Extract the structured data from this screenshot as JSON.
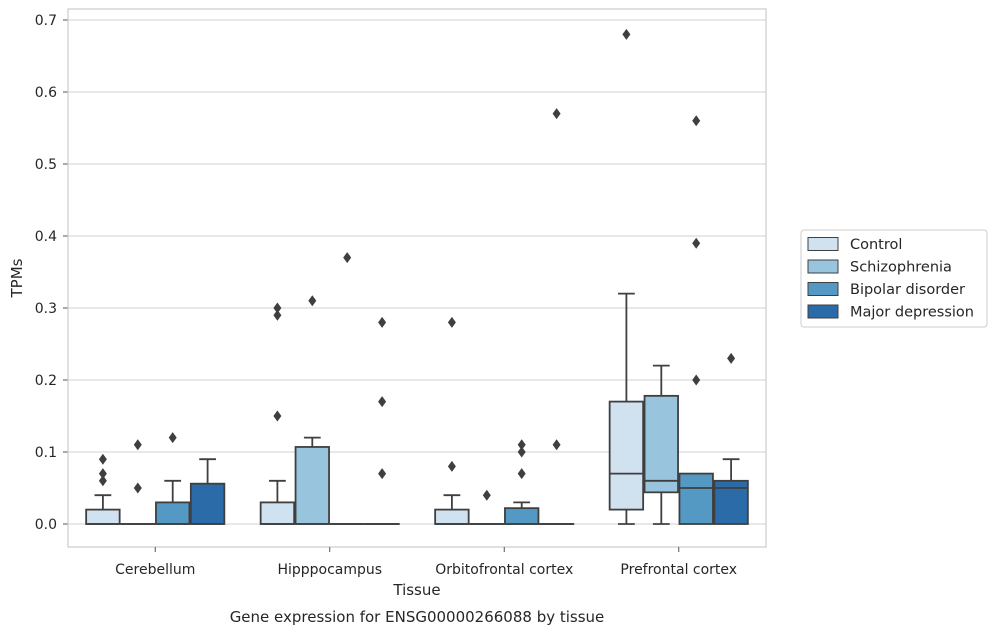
{
  "chart_data": {
    "type": "boxplot",
    "xlabel": "Tissue",
    "ylabel": "TPMs",
    "caption": "Gene expression for ENSG00000266088 by tissue",
    "ylim": [
      -0.033,
      0.715
    ],
    "yticks": [
      0.0,
      0.1,
      0.2,
      0.3,
      0.4,
      0.5,
      0.6,
      0.7
    ],
    "ytick_labels": [
      "0.0",
      "0.1",
      "0.2",
      "0.3",
      "0.4",
      "0.5",
      "0.6",
      "0.7"
    ],
    "grid": "horizontal",
    "legend_position": "right",
    "categories": [
      "Cerebellum",
      "Hipppocampus",
      "Orbitofrontal cortex",
      "Prefrontal cortex"
    ],
    "series": [
      {
        "name": "Control",
        "color": "#d0e1f0",
        "boxes": [
          {
            "whislo": 0.0,
            "q1": 0.0,
            "med": 0.0,
            "q3": 0.02,
            "whishi": 0.04,
            "fliers": [
              0.06,
              0.07,
              0.09
            ]
          },
          {
            "whislo": 0.0,
            "q1": 0.0,
            "med": 0.0,
            "q3": 0.03,
            "whishi": 0.06,
            "fliers": [
              0.15,
              0.29,
              0.3
            ]
          },
          {
            "whislo": 0.0,
            "q1": 0.0,
            "med": 0.0,
            "q3": 0.02,
            "whishi": 0.04,
            "fliers": [
              0.08,
              0.28
            ]
          },
          {
            "whislo": 0.0,
            "q1": 0.02,
            "med": 0.07,
            "q3": 0.17,
            "whishi": 0.32,
            "fliers": [
              0.68
            ]
          }
        ]
      },
      {
        "name": "Schizophrenia",
        "color": "#99c4de",
        "boxes": [
          {
            "whislo": 0.0,
            "q1": 0.0,
            "med": 0.0,
            "q3": 0.0,
            "whishi": 0.0,
            "fliers": [
              0.05,
              0.11
            ]
          },
          {
            "whislo": 0.0,
            "q1": 0.0,
            "med": 0.0,
            "q3": 0.107,
            "whishi": 0.12,
            "fliers": [
              0.31
            ]
          },
          {
            "whislo": 0.0,
            "q1": 0.0,
            "med": 0.0,
            "q3": 0.0,
            "whishi": 0.0,
            "fliers": [
              0.04
            ]
          },
          {
            "whislo": 0.0,
            "q1": 0.044,
            "med": 0.06,
            "q3": 0.178,
            "whishi": 0.22,
            "fliers": []
          }
        ]
      },
      {
        "name": "Bipolar disorder",
        "color": "#5499c4",
        "boxes": [
          {
            "whislo": 0.0,
            "q1": 0.0,
            "med": 0.0,
            "q3": 0.03,
            "whishi": 0.06,
            "fliers": [
              0.12
            ]
          },
          {
            "whislo": 0.0,
            "q1": 0.0,
            "med": 0.0,
            "q3": 0.0,
            "whishi": 0.0,
            "fliers": [
              0.37
            ]
          },
          {
            "whislo": 0.0,
            "q1": 0.0,
            "med": 0.0,
            "q3": 0.022,
            "whishi": 0.03,
            "fliers": [
              0.07,
              0.1,
              0.11
            ]
          },
          {
            "whislo": 0.0,
            "q1": 0.0,
            "med": 0.05,
            "q3": 0.07,
            "whishi": 0.07,
            "fliers": [
              0.2,
              0.39,
              0.56
            ]
          }
        ]
      },
      {
        "name": "Major depression",
        "color": "#2b6ba8",
        "boxes": [
          {
            "whislo": 0.0,
            "q1": 0.0,
            "med": 0.0,
            "q3": 0.056,
            "whishi": 0.09,
            "fliers": []
          },
          {
            "whislo": 0.0,
            "q1": 0.0,
            "med": 0.0,
            "q3": 0.0,
            "whishi": 0.0,
            "fliers": [
              0.07,
              0.17,
              0.28
            ]
          },
          {
            "whislo": 0.0,
            "q1": 0.0,
            "med": 0.0,
            "q3": 0.0,
            "whishi": 0.0,
            "fliers": [
              0.11,
              0.57
            ]
          },
          {
            "whislo": 0.0,
            "q1": 0.0,
            "med": 0.05,
            "q3": 0.06,
            "whishi": 0.09,
            "fliers": [
              0.23
            ]
          }
        ]
      }
    ]
  }
}
